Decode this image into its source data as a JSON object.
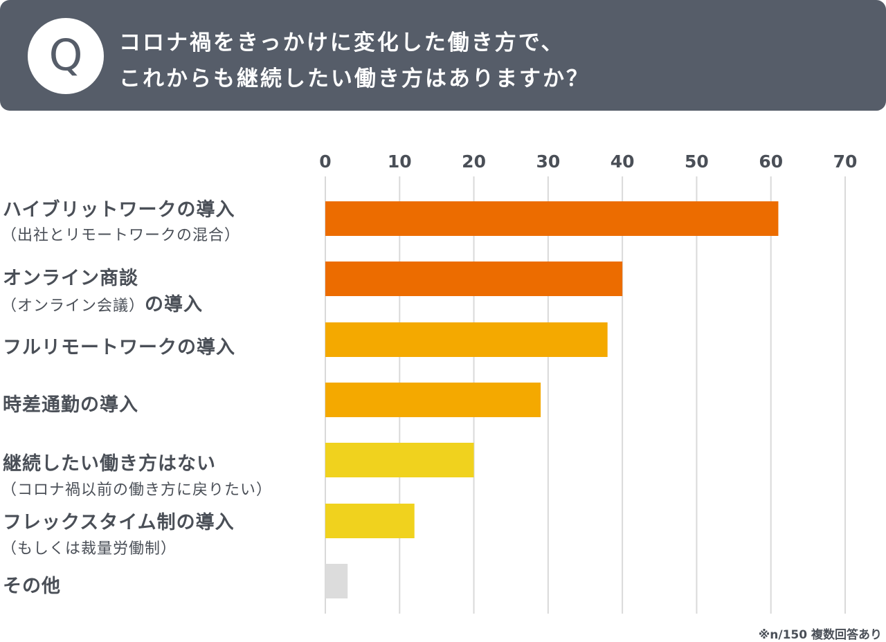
{
  "question": {
    "badge": "Q",
    "line1": "コロナ禍をきっかけに変化した働き方で、",
    "line2": "これからも継続したい働き方はありますか？"
  },
  "labels": [
    {
      "main": "ハイブリットワークの導入",
      "sub": "（出社とリモートワークの混合）"
    },
    {
      "main": "オンライン商談",
      "sub": "（オンライン会議）",
      "sub_bold": "の導入"
    },
    {
      "main": "フルリモートワークの導入"
    },
    {
      "main": "時差通勤の導入"
    },
    {
      "main": "継続したい働き方はない",
      "sub": "（コロナ禍以前の働き方に戻りたい）"
    },
    {
      "main": "フレックスタイム制の導入",
      "sub": "（もしくは裁量労働制）"
    },
    {
      "main": "その他"
    }
  ],
  "note": "※n/150 複数回答あり",
  "chart_data": {
    "type": "bar",
    "orientation": "horizontal",
    "title": "コロナ禍をきっかけに変化した働き方で、これからも継続したい働き方はありますか？",
    "categories": [
      "ハイブリットワークの導入（出社とリモートワークの混合）",
      "オンライン商談（オンライン会議）の導入",
      "フルリモートワークの導入",
      "時差通勤の導入",
      "継続したい働き方はない（コロナ禍以前の働き方に戻りたい）",
      "フレックスタイム制の導入（もしくは裁量労働制）",
      "その他"
    ],
    "values": [
      61,
      40,
      38,
      29,
      20,
      12,
      3
    ],
    "bar_colors": [
      "#ec6c00",
      "#ec6c00",
      "#f4a900",
      "#f4a900",
      "#f0d21e",
      "#f0d21e",
      "#dcdcdc"
    ],
    "xlim": [
      0,
      70
    ],
    "xticks": [
      "0",
      "10",
      "20",
      "30",
      "40",
      "50",
      "60",
      "70"
    ],
    "xtick_values": [
      0,
      10,
      20,
      30,
      40,
      50,
      60,
      70
    ],
    "grid": true,
    "axis_position": "top",
    "gridline_color": "#d9d9d9",
    "tick_color": "#4a4f57"
  }
}
